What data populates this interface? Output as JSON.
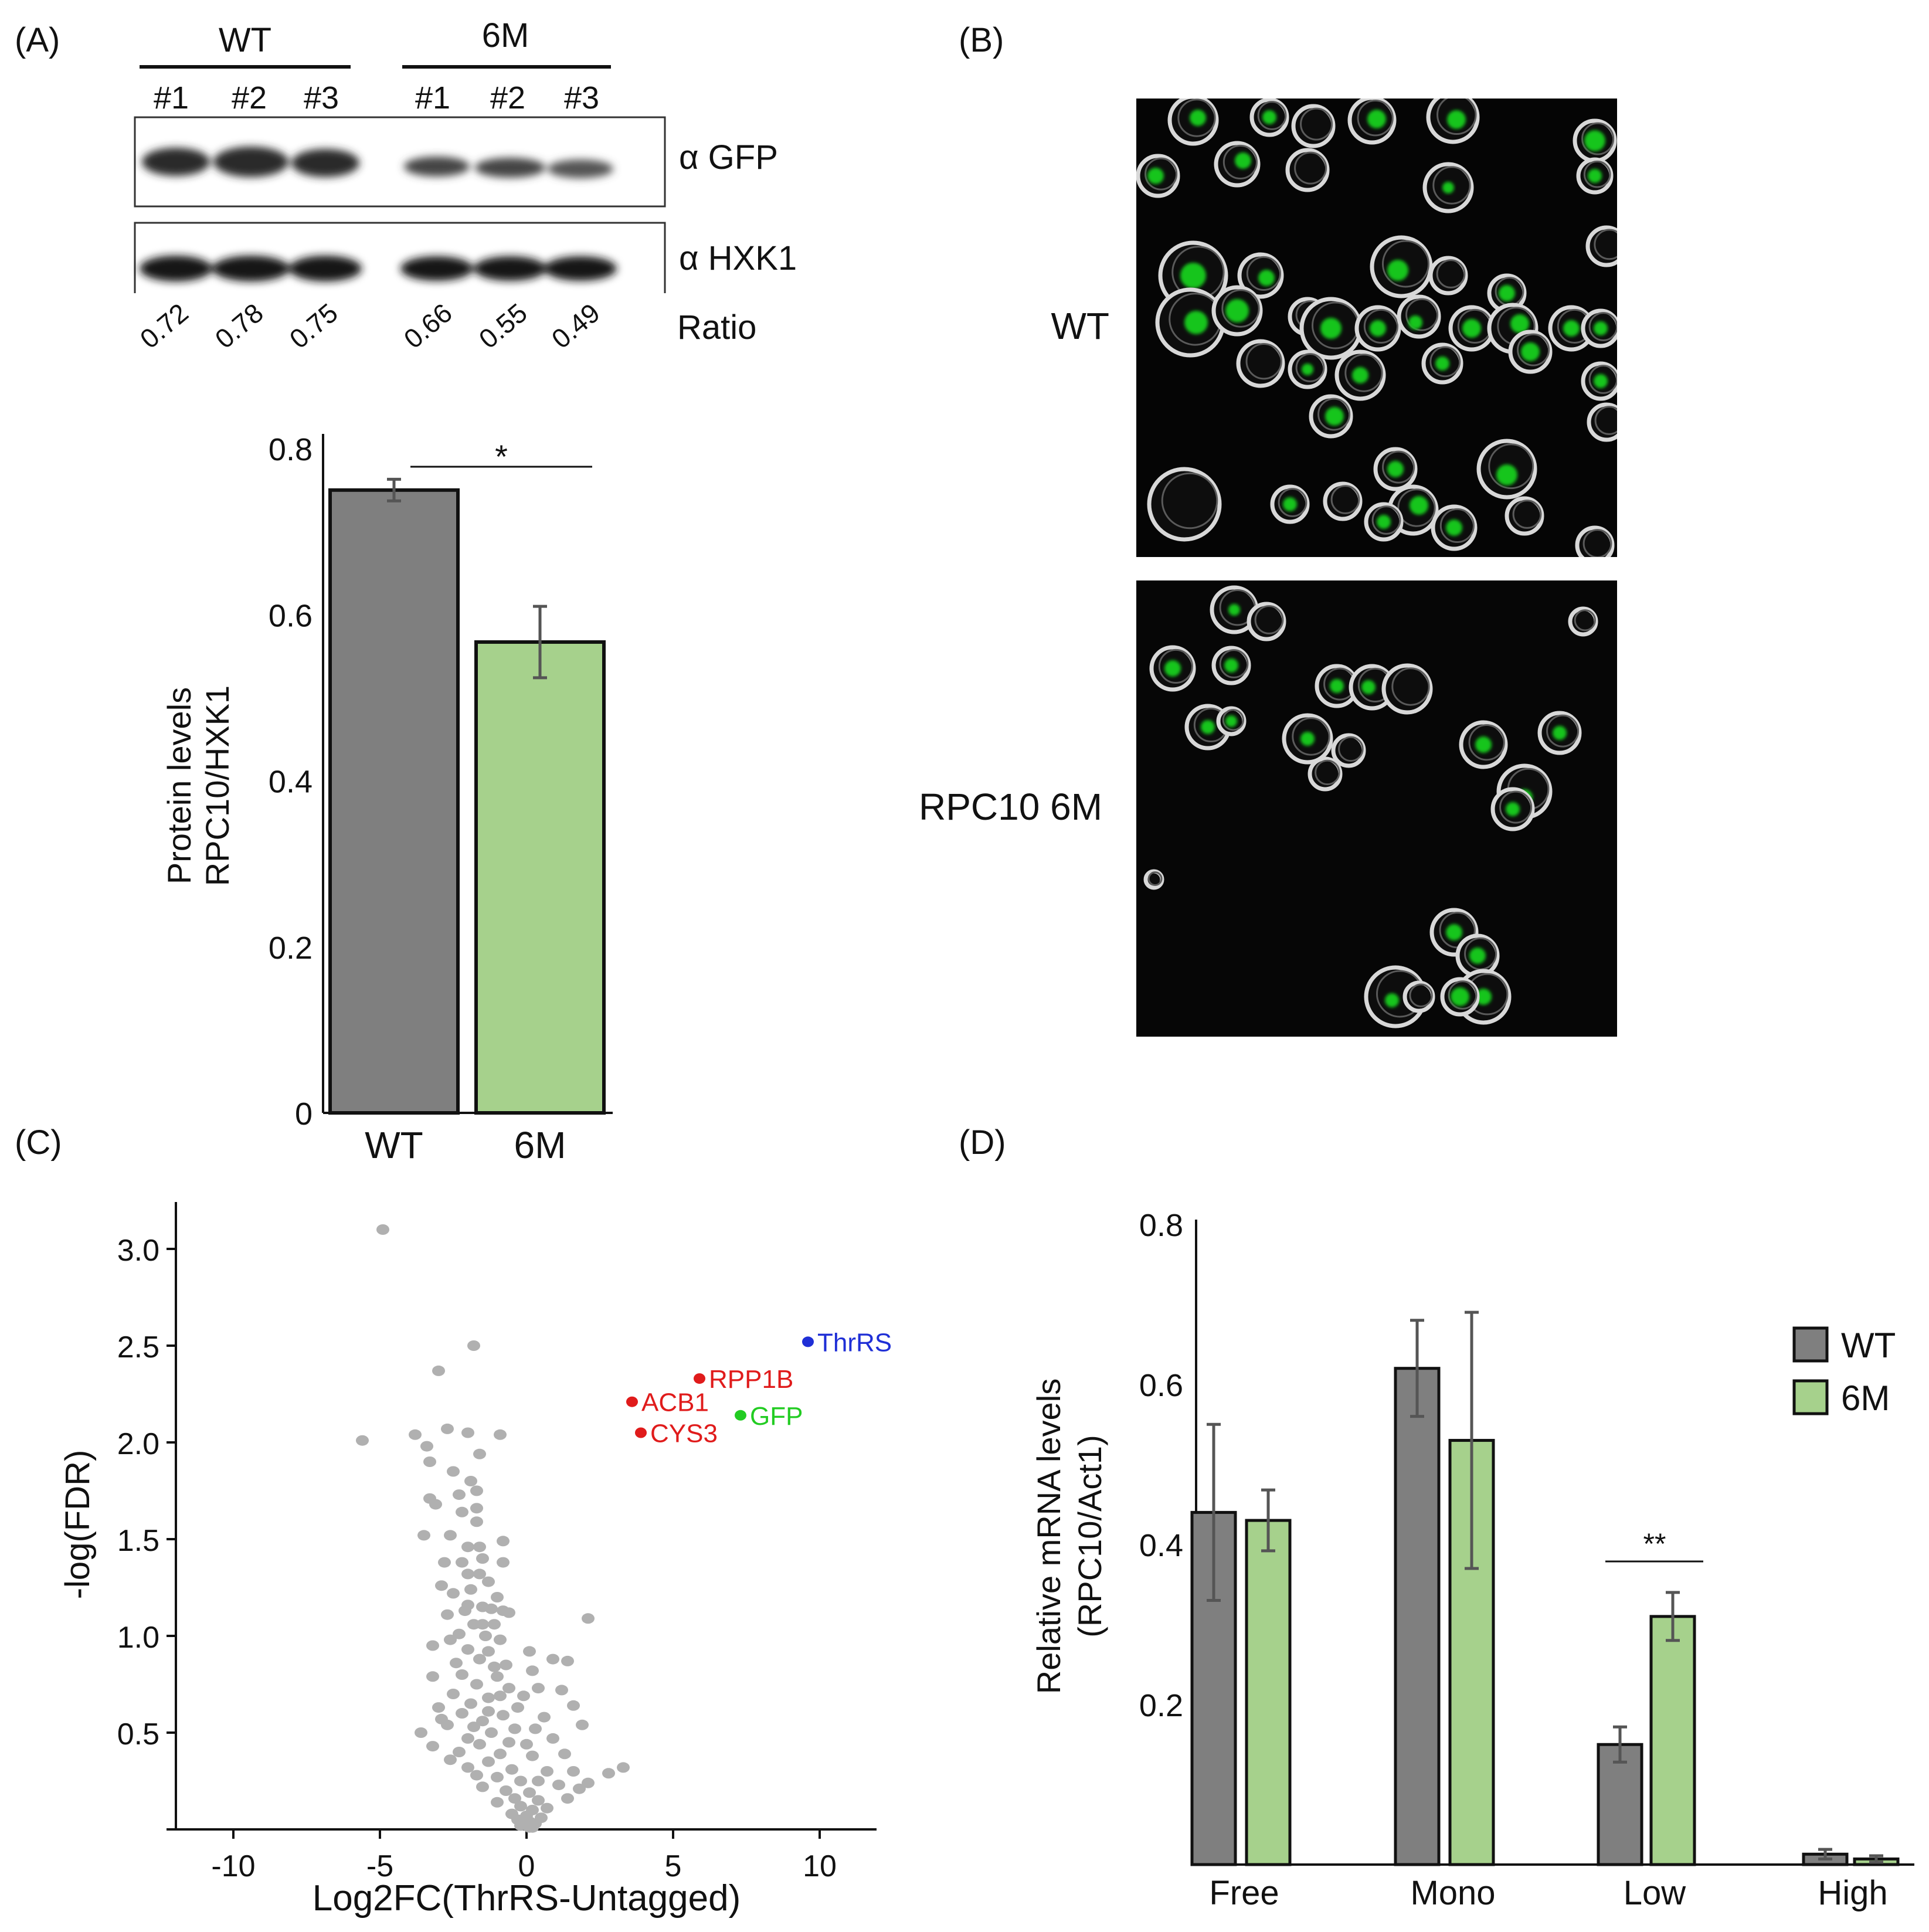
{
  "panels": {
    "A": {
      "letter": "(A)",
      "blot": {
        "groups": [
          "WT",
          "6M"
        ],
        "lanes": [
          "#1",
          "#2",
          "#3",
          "#1",
          "#2",
          "#3"
        ],
        "antibodies": [
          "α GFP",
          "α HXK1"
        ],
        "ratios": [
          "0.72",
          "0.78",
          "0.75",
          "0.66",
          "0.55",
          "0.49"
        ],
        "ratio_label": "Ratio"
      }
    },
    "B": {
      "letter": "(B)",
      "images": [
        {
          "label": "WT",
          "description": "micrograph-wt"
        },
        {
          "label": "RPC10 6M",
          "description": "micrograph-6m"
        }
      ]
    },
    "C": {
      "letter": "(C)"
    },
    "D": {
      "letter": "(D)"
    }
  },
  "colors": {
    "wt": "#7f7f7f",
    "m6": "#a6d18c",
    "bg_points": "#b0b0b0",
    "thrrs": "#1f2fd6",
    "red": "#e01b1b",
    "gfp": "#22cc22"
  },
  "chart_data": [
    {
      "id": "bar-A",
      "type": "bar",
      "categories": [
        "WT",
        "6M"
      ],
      "values": [
        0.75,
        0.567
      ],
      "errors": [
        0.013,
        0.043
      ],
      "ylabel": [
        "Protein levels",
        "RPC10/HXK1"
      ],
      "ylim": [
        0,
        0.8
      ],
      "yticks": [
        "0",
        "0.2",
        "0.4",
        "0.6",
        "0.8"
      ],
      "significance": "*"
    },
    {
      "id": "volcano-C",
      "type": "scatter",
      "xlabel": "Log2FC(ThrRS-Untagged)",
      "ylabel": "-log(FDR)",
      "xlim": [
        -12,
        12
      ],
      "ylim": [
        0,
        3.25
      ],
      "xticks": [
        "-10",
        "-5",
        "0",
        "5",
        "10"
      ],
      "yticks": [
        "0.5",
        "1.0",
        "1.5",
        "2.0",
        "2.5",
        "3.0"
      ],
      "labeled": [
        {
          "label": "ThrRS",
          "x": 9.6,
          "y": 2.52,
          "color": "#1f2fd6"
        },
        {
          "label": "RPP1B",
          "x": 5.9,
          "y": 2.33,
          "color": "#e01b1b"
        },
        {
          "label": "ACB1",
          "x": 3.6,
          "y": 2.21,
          "color": "#e01b1b"
        },
        {
          "label": "GFP",
          "x": 7.3,
          "y": 2.14,
          "color": "#22cc22"
        },
        {
          "label": "CYS3",
          "x": 3.9,
          "y": 2.05,
          "color": "#e01b1b"
        }
      ],
      "points": [
        [
          -4.9,
          3.1
        ],
        [
          -1.8,
          2.5
        ],
        [
          -3.0,
          2.37
        ],
        [
          -5.6,
          2.01
        ],
        [
          -3.8,
          2.04
        ],
        [
          -2.7,
          2.07
        ],
        [
          -0.9,
          2.04
        ],
        [
          -2.0,
          2.05
        ],
        [
          -3.4,
          1.98
        ],
        [
          -1.6,
          1.94
        ],
        [
          -3.3,
          1.9
        ],
        [
          -2.5,
          1.85
        ],
        [
          -1.9,
          1.8
        ],
        [
          -1.7,
          1.75
        ],
        [
          -3.3,
          1.71
        ],
        [
          -3.1,
          1.68
        ],
        [
          -1.7,
          1.66
        ],
        [
          -2.2,
          1.64
        ],
        [
          -3.5,
          1.52
        ],
        [
          -2.6,
          1.52
        ],
        [
          -2.0,
          1.46
        ],
        [
          -1.6,
          1.46
        ],
        [
          -0.8,
          1.49
        ],
        [
          -1.5,
          1.4
        ],
        [
          -2.8,
          1.38
        ],
        [
          -2.2,
          1.38
        ],
        [
          -0.8,
          1.38
        ],
        [
          -1.6,
          1.32
        ],
        [
          -2.0,
          1.32
        ],
        [
          -1.3,
          1.28
        ],
        [
          -1.9,
          1.24
        ],
        [
          -2.5,
          1.22
        ],
        [
          -1.0,
          1.2
        ],
        [
          -2.0,
          1.16
        ],
        [
          -1.5,
          1.15
        ],
        [
          -1.2,
          1.14
        ],
        [
          -0.8,
          1.13
        ],
        [
          -2.7,
          1.11
        ],
        [
          -1.8,
          1.06
        ],
        [
          -1.1,
          1.06
        ],
        [
          -2.3,
          1.01
        ],
        [
          -1.4,
          1.0
        ],
        [
          -0.9,
          0.98
        ],
        [
          -3.2,
          0.95
        ],
        [
          -2.0,
          0.93
        ],
        [
          -1.3,
          0.92
        ],
        [
          2.1,
          1.09
        ],
        [
          -1.6,
          0.88
        ],
        [
          -2.4,
          0.86
        ],
        [
          -0.7,
          0.85
        ],
        [
          0.9,
          0.88
        ],
        [
          1.4,
          0.87
        ],
        [
          0.2,
          0.82
        ],
        [
          -2.2,
          0.8
        ],
        [
          -1.0,
          0.79
        ],
        [
          -3.2,
          0.79
        ],
        [
          -1.7,
          0.75
        ],
        [
          -0.6,
          0.73
        ],
        [
          0.4,
          0.73
        ],
        [
          1.2,
          0.72
        ],
        [
          -2.5,
          0.7
        ],
        [
          -1.3,
          0.68
        ],
        [
          -1.9,
          0.65
        ],
        [
          -0.3,
          0.63
        ],
        [
          1.6,
          0.64
        ],
        [
          -3.0,
          0.63
        ],
        [
          -2.2,
          0.6
        ],
        [
          -0.8,
          0.59
        ],
        [
          0.6,
          0.58
        ],
        [
          -1.5,
          0.56
        ],
        [
          -2.7,
          0.54
        ],
        [
          -0.4,
          0.52
        ],
        [
          0.3,
          0.52
        ],
        [
          1.9,
          0.54
        ],
        [
          -1.2,
          0.5
        ],
        [
          -3.6,
          0.5
        ],
        [
          -2.0,
          0.47
        ],
        [
          -0.6,
          0.45
        ],
        [
          0.9,
          0.47
        ],
        [
          -1.6,
          0.44
        ],
        [
          -3.2,
          0.43
        ],
        [
          -2.3,
          0.4
        ],
        [
          -0.9,
          0.39
        ],
        [
          0.2,
          0.38
        ],
        [
          1.3,
          0.39
        ],
        [
          3.3,
          0.32
        ],
        [
          -1.3,
          0.35
        ],
        [
          -2.0,
          0.32
        ],
        [
          -0.5,
          0.31
        ],
        [
          0.7,
          0.3
        ],
        [
          1.6,
          0.3
        ],
        [
          2.8,
          0.29
        ],
        [
          -1.0,
          0.27
        ],
        [
          -0.2,
          0.25
        ],
        [
          0.4,
          0.25
        ],
        [
          1.1,
          0.23
        ],
        [
          -1.5,
          0.22
        ],
        [
          -0.7,
          0.2
        ],
        [
          0.1,
          0.19
        ],
        [
          2.1,
          0.24
        ],
        [
          -0.4,
          0.16
        ],
        [
          0.4,
          0.15
        ],
        [
          1.4,
          0.16
        ],
        [
          -1.0,
          0.14
        ],
        [
          -0.2,
          0.12
        ],
        [
          0.2,
          0.1
        ],
        [
          0.7,
          0.11
        ],
        [
          -0.5,
          0.08
        ],
        [
          0.0,
          0.07
        ],
        [
          0.5,
          0.06
        ],
        [
          -0.3,
          0.05
        ],
        [
          0.1,
          0.04
        ],
        [
          -0.1,
          0.03
        ],
        [
          0.3,
          0.03
        ],
        [
          0.0,
          0.02
        ],
        [
          -0.2,
          0.02
        ],
        [
          0.2,
          0.01
        ],
        [
          0.1,
          0.01
        ],
        [
          -2.9,
          1.26
        ],
        [
          -0.6,
          1.12
        ],
        [
          -2.6,
          0.98
        ],
        [
          -1.1,
          0.84
        ],
        [
          -0.1,
          0.69
        ],
        [
          -2.9,
          0.57
        ],
        [
          -1.8,
          0.53
        ],
        [
          0.0,
          0.44
        ],
        [
          -2.6,
          0.36
        ],
        [
          -1.7,
          0.28
        ],
        [
          1.8,
          0.21
        ],
        [
          -1.3,
          0.61
        ],
        [
          -0.9,
          0.69
        ],
        [
          -1.5,
          1.06
        ],
        [
          -2.1,
          1.13
        ],
        [
          -1.7,
          1.59
        ],
        [
          -2.3,
          1.73
        ],
        [
          0.1,
          0.92
        ]
      ]
    },
    {
      "id": "bar-D",
      "type": "bar",
      "categories": [
        "Free",
        "Mono",
        "Low",
        "High"
      ],
      "series": [
        {
          "name": "WT",
          "values": [
            0.44,
            0.62,
            0.15,
            0.013
          ],
          "errors": [
            0.11,
            0.06,
            0.022,
            0.006
          ]
        },
        {
          "name": "6M",
          "values": [
            0.43,
            0.53,
            0.31,
            0.007
          ],
          "errors": [
            0.038,
            0.16,
            0.03,
            0.004
          ]
        }
      ],
      "ylabel": [
        "Relative mRNA levels",
        "(RPC10/Act1)"
      ],
      "ylim": [
        0,
        0.8
      ],
      "yticks": [
        "0.2",
        "0.4",
        "0.6",
        "0.8"
      ],
      "legend_position": "right",
      "significance": {
        "category": "Low",
        "label": "**"
      }
    }
  ]
}
